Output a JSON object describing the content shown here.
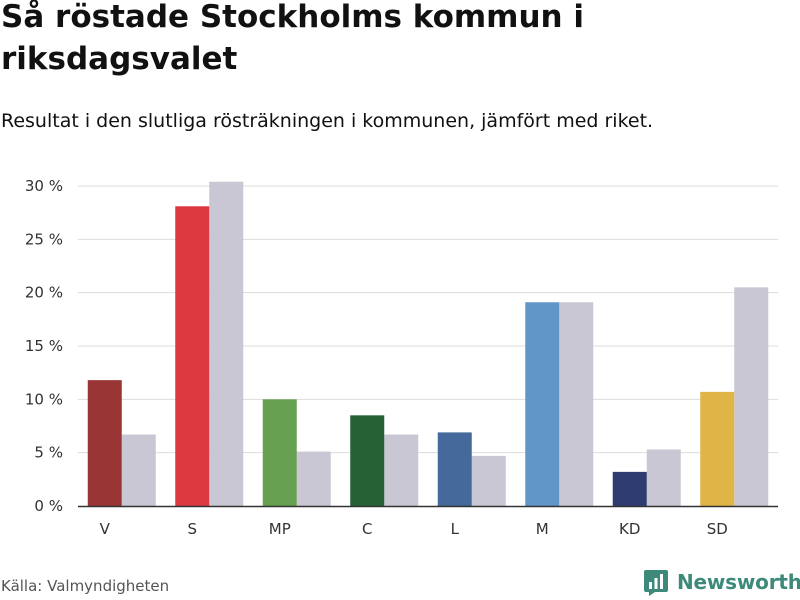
{
  "title": "Så röstade Stockholms kommun i riksdagsvalet",
  "subtitle": "Resultat i den slutliga rösträkningen i kommunen, jämfört med riket.",
  "source": "Källa: Valmyndigheten",
  "brand": "Newsworthy",
  "colors": {
    "grid": "#dddddd",
    "axis": "#333333",
    "national": "#c8c7d3",
    "brand": "#3d8a7b"
  },
  "chart_data": {
    "type": "bar",
    "categories": [
      "V",
      "S",
      "MP",
      "C",
      "L",
      "M",
      "KD",
      "SD"
    ],
    "series": [
      {
        "name": "Stockholms kommun",
        "values": [
          11.8,
          28.1,
          10.0,
          8.5,
          6.9,
          19.1,
          3.2,
          10.7
        ],
        "colors": [
          "#9a3535",
          "#dc3940",
          "#67a050",
          "#266136",
          "#44699a",
          "#6197c8",
          "#2f3c72",
          "#e1b545"
        ]
      },
      {
        "name": "Riket",
        "values": [
          6.7,
          30.4,
          5.1,
          6.7,
          4.7,
          19.1,
          5.3,
          20.5
        ],
        "color": "#c8c7d3"
      }
    ],
    "yticks": [
      "0 %",
      "5 %",
      "10 %",
      "15 %",
      "20 %",
      "25 %",
      "30 %"
    ],
    "ylim": [
      0,
      30
    ]
  }
}
